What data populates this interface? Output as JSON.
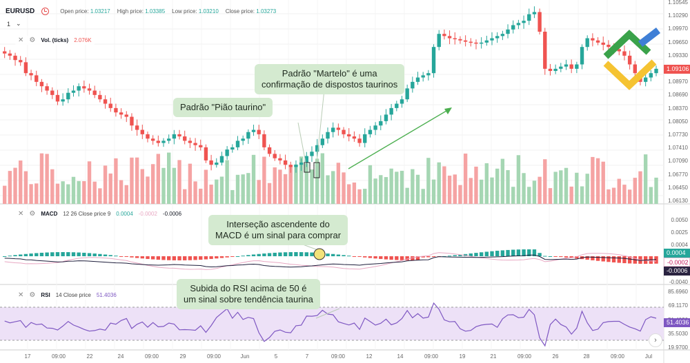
{
  "header": {
    "symbol": "EURUSD",
    "open_label": "Open price:",
    "open_value": "1.03217",
    "high_label": "High price:",
    "high_value": "1.03385",
    "low_label": "Low price:",
    "low_value": "1.03210",
    "close_label": "Close price:",
    "close_value": "1.03273",
    "interval": "1",
    "chevron": "⌄"
  },
  "panes": {
    "volume": {
      "name": "Vol. (ticks)",
      "value": "2.076K"
    },
    "macd": {
      "name": "MACD",
      "params": "12 26 Close price 9",
      "v1": "0.0004",
      "v2": "-0.0002",
      "v3": "-0.0006"
    },
    "rsi": {
      "name": "RSI",
      "params": "14 Close price",
      "value": "51.4036"
    }
  },
  "callouts": {
    "martelo": "Padrão \"Martelo\" é uma\nconfirmação de dispostos taurinos",
    "piao": "Padrão \"Pião taurino\"",
    "macd": "Interseção ascendente do\nMACD é um sinal para comprar",
    "rsi": "Subida do RSI acima de 50 é\num sinal sobre tendência taurina"
  },
  "price_axis": [
    "1.10545",
    "1.10290",
    "1.09970",
    "1.09650",
    "1.09330",
    "1.09106",
    "1.08970",
    "1.08690",
    "1.08370",
    "1.08050",
    "1.07730",
    "1.07410",
    "1.07090",
    "1.06770",
    "1.06450",
    "1.06130"
  ],
  "macd_axis": [
    "0.0050",
    "0.0025",
    "0.0004",
    "-0.0002",
    "-0.0006",
    "-0.0040"
  ],
  "rsi_axis": [
    "85.6960",
    "69.1170",
    "51.4036",
    "35.5030",
    "19.9700"
  ],
  "price_tag": "1.09106",
  "time_axis": [
    "17",
    "09:00",
    "22",
    "24",
    "09:00",
    "29",
    "09:00",
    "Jun",
    "5",
    "7",
    "09:00",
    "12",
    "14",
    "09:00",
    "19",
    "21",
    "09:00",
    "26",
    "28",
    "09:00",
    "Jul"
  ],
  "colors": {
    "bull": "#26a69a",
    "bear": "#ef5350",
    "bull_vol": "#a5d6b3",
    "bear_vol": "#f5a3a3",
    "rsi": "#7e57c2",
    "rsi_band": "#ede1f7",
    "macd_line": "#1c1c3a",
    "signal_line": "#e8a7c2",
    "callout": "#d4ead0",
    "price_tag": "#ef5350",
    "arrow": "#4caf50"
  },
  "icons": {
    "close": "close-icon",
    "settings": "gear-icon",
    "clock": "clock-icon",
    "logo": "broker-logo",
    "scroll": "chevron-right-icon"
  },
  "scroll_glyph": "›",
  "chart_data": {
    "type": "candlestick",
    "symbol": "EURUSD",
    "ylim": [
      1.0613,
      1.1055
    ],
    "price_series": [
      1.0945,
      1.094,
      1.093,
      1.0925,
      1.09,
      1.0895,
      1.088,
      1.087,
      1.086,
      1.085,
      1.0835,
      1.084,
      1.0855,
      1.086,
      1.087,
      1.0865,
      1.086,
      1.085,
      1.084,
      1.083,
      1.082,
      1.081,
      1.0805,
      1.08,
      1.078,
      1.077,
      1.076,
      1.075,
      1.0745,
      1.074,
      1.0745,
      1.075,
      1.076,
      1.0755,
      1.0745,
      1.074,
      1.0735,
      1.073,
      1.07,
      1.069,
      1.0695,
      1.071,
      1.0725,
      1.073,
      1.0745,
      1.075,
      1.0765,
      1.077,
      1.076,
      1.073,
      1.0715,
      1.0705,
      1.07,
      1.069,
      1.0685,
      1.069,
      1.0695,
      1.071,
      1.072,
      1.0735,
      1.075,
      1.0765,
      1.0775,
      1.077,
      1.076,
      1.0755,
      1.075,
      1.074,
      1.076,
      1.077,
      1.078,
      1.079,
      1.0805,
      1.082,
      1.083,
      1.084,
      1.0865,
      1.088,
      1.089,
      1.0895,
      1.09,
      1.096,
      1.099,
      1.0985,
      1.098,
      1.0978,
      1.0975,
      1.0972,
      1.097,
      1.0968,
      1.097,
      1.0975,
      1.098,
      1.0985,
      1.099,
      1.1,
      1.101,
      1.1015,
      1.102,
      1.1035,
      1.104,
      1.0995,
      1.091,
      1.0905,
      1.091,
      1.0915,
      1.092,
      1.091,
      1.092,
      1.096,
      1.098,
      1.0975,
      1.097,
      1.0965,
      1.096,
      1.0955,
      1.095,
      1.094,
      1.092,
      1.09,
      1.088,
      1.089,
      1.09,
      1.091
    ]
  }
}
